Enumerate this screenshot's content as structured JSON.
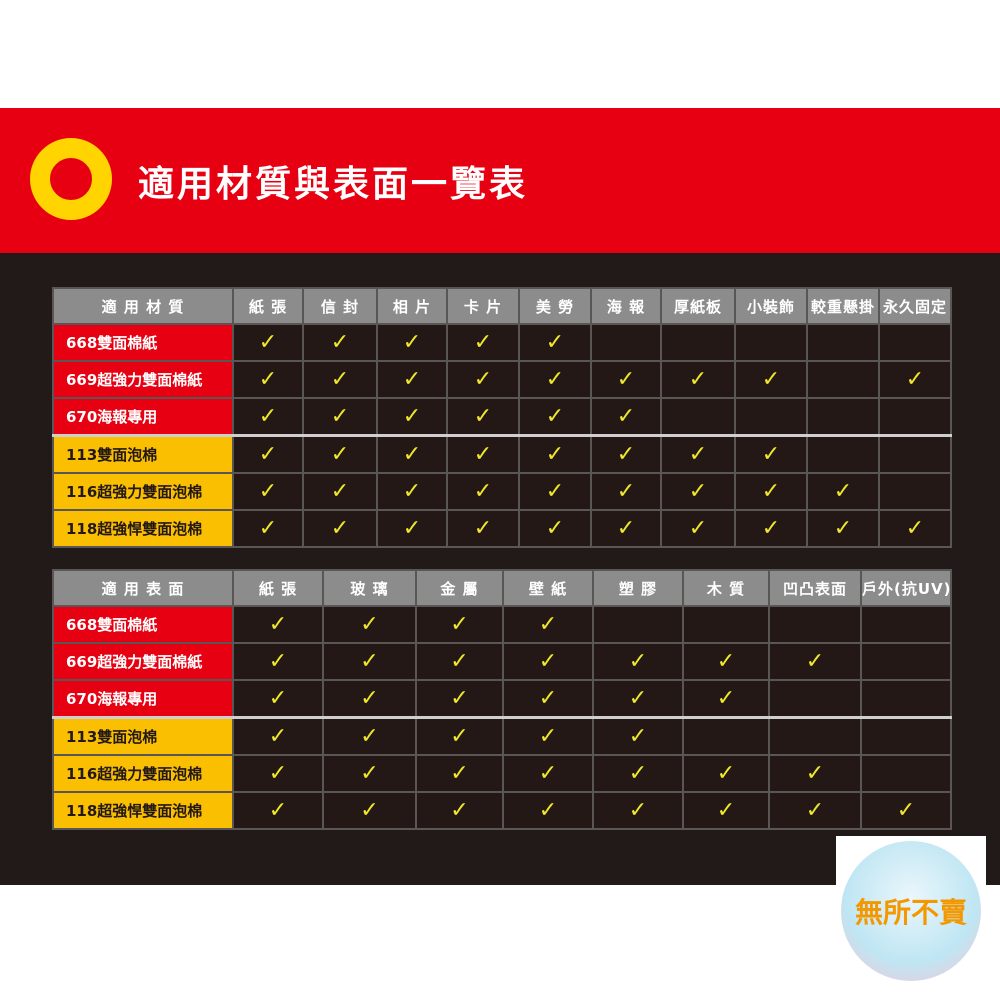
{
  "title": "適用材質與表面一覽表",
  "colors": {
    "banner": "#e60012",
    "ring": "#ffd400",
    "paper_group": "#e60012",
    "foam_group": "#f9bf00",
    "check": "#f0e82a"
  },
  "products": [
    "668雙面棉紙",
    "669超強力雙面棉紙",
    "670海報專用",
    "113雙面泡棉",
    "116超強力雙面泡棉",
    "118超強悍雙面泡棉"
  ],
  "materials_table": {
    "header": "適 用 材 質",
    "columns": [
      "紙 張",
      "信 封",
      "相 片",
      "卡 片",
      "美 勞",
      "海 報",
      "厚紙板",
      "小裝飾",
      "較重懸掛",
      "永久固定"
    ],
    "checks": [
      [
        1,
        1,
        1,
        1,
        1,
        0,
        0,
        0,
        0,
        0
      ],
      [
        1,
        1,
        1,
        1,
        1,
        1,
        1,
        1,
        0,
        1
      ],
      [
        1,
        1,
        1,
        1,
        1,
        1,
        0,
        0,
        0,
        0
      ],
      [
        1,
        1,
        1,
        1,
        1,
        1,
        1,
        1,
        0,
        0
      ],
      [
        1,
        1,
        1,
        1,
        1,
        1,
        1,
        1,
        1,
        0
      ],
      [
        1,
        1,
        1,
        1,
        1,
        1,
        1,
        1,
        1,
        1
      ]
    ]
  },
  "surfaces_table": {
    "header": "適 用 表 面",
    "columns": [
      "紙 張",
      "玻 璃",
      "金 屬",
      "壁 紙",
      "塑 膠",
      "木 質",
      "凹凸表面",
      "戶外(抗UV)"
    ],
    "checks": [
      [
        1,
        1,
        1,
        1,
        0,
        0,
        0,
        0
      ],
      [
        1,
        1,
        1,
        1,
        1,
        1,
        1,
        0
      ],
      [
        1,
        1,
        1,
        1,
        1,
        1,
        0,
        0
      ],
      [
        1,
        1,
        1,
        1,
        1,
        0,
        0,
        0
      ],
      [
        1,
        1,
        1,
        1,
        1,
        1,
        1,
        0
      ],
      [
        1,
        1,
        1,
        1,
        1,
        1,
        1,
        1
      ]
    ]
  },
  "check_symbol": "✓",
  "watermark_logo": "無所不賣"
}
